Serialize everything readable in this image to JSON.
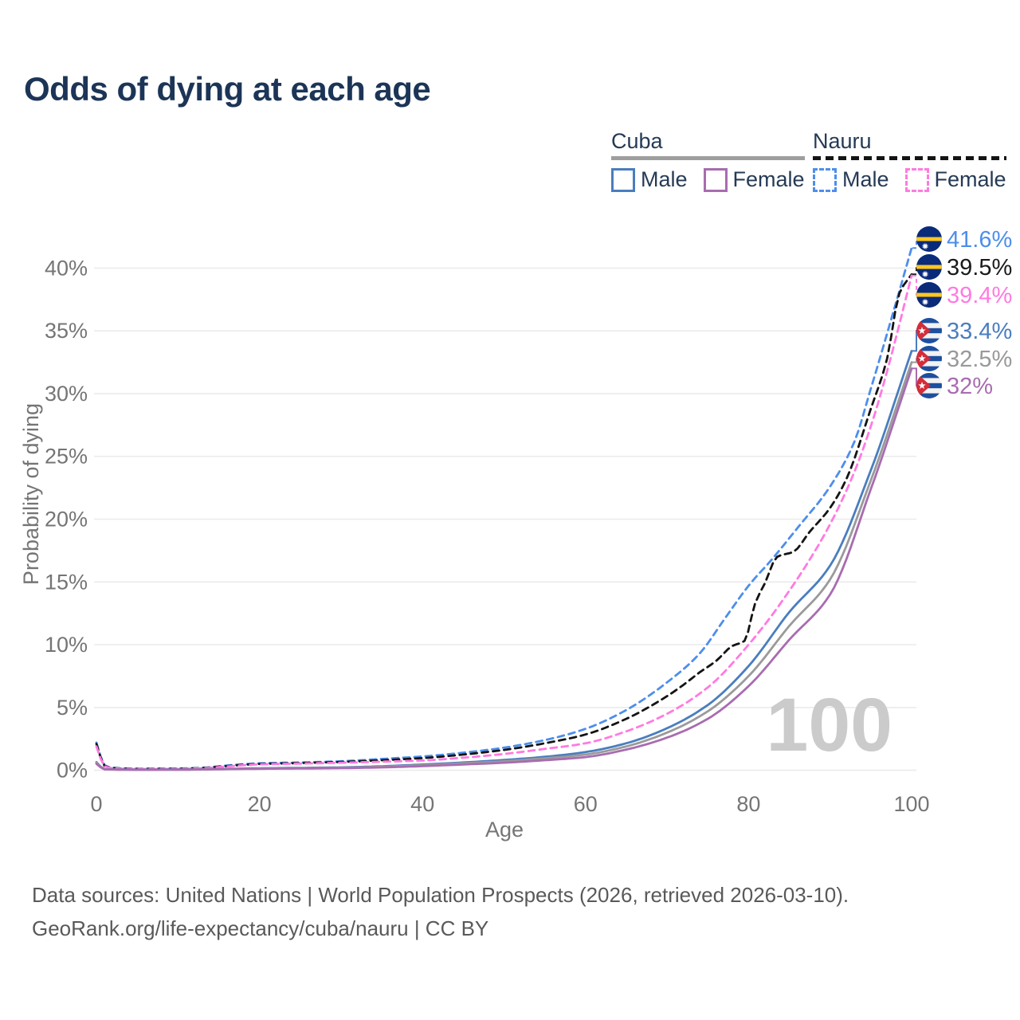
{
  "title": "Odds of dying at each age",
  "legend": {
    "groups": [
      {
        "label": "Cuba",
        "line_style": "solid",
        "underline_color": "#9e9e9e",
        "items": [
          {
            "label": "Male",
            "color": "#4a7dbf"
          },
          {
            "label": "Female",
            "color": "#a86cb0"
          }
        ]
      },
      {
        "label": "Nauru",
        "line_style": "dashed",
        "underline_color": "#141414",
        "items": [
          {
            "label": "Male",
            "color": "#4d8eeb"
          },
          {
            "label": "Female",
            "color": "#ff7ae1"
          }
        ]
      }
    ]
  },
  "chart_data": {
    "type": "line",
    "title": "Odds of dying at each age",
    "xlabel": "Age",
    "ylabel": "Probability of dying",
    "xlim": [
      0,
      100
    ],
    "ylim": [
      0,
      43
    ],
    "x_ticks": [
      0,
      20,
      40,
      60,
      80,
      100
    ],
    "y_ticks": [
      0,
      5,
      10,
      15,
      20,
      25,
      30,
      35,
      40
    ],
    "y_tick_suffix": "%",
    "grid": "horizontal",
    "watermark": "100",
    "legend_position": "top-right",
    "series": [
      {
        "key": "nauru-male",
        "name": "Nauru male",
        "country": "Nauru",
        "sex": "Male",
        "color": "#4d8eeb",
        "label_color": "#4d8eeb",
        "dashed": true,
        "flag": "nauru",
        "end_label": "41.6%",
        "end_value": 41.6,
        "points": [
          [
            0,
            2.2
          ],
          [
            1,
            0.4
          ],
          [
            2,
            0.2
          ],
          [
            5,
            0.13
          ],
          [
            10,
            0.14
          ],
          [
            13,
            0.2
          ],
          [
            16,
            0.38
          ],
          [
            20,
            0.55
          ],
          [
            25,
            0.62
          ],
          [
            30,
            0.72
          ],
          [
            35,
            0.9
          ],
          [
            40,
            1.1
          ],
          [
            45,
            1.4
          ],
          [
            50,
            1.8
          ],
          [
            55,
            2.4
          ],
          [
            60,
            3.3
          ],
          [
            65,
            4.8
          ],
          [
            70,
            7.0
          ],
          [
            74,
            9.3
          ],
          [
            77,
            12.0
          ],
          [
            80,
            14.7
          ],
          [
            83,
            16.9
          ],
          [
            86,
            19.3
          ],
          [
            90,
            22.6
          ],
          [
            93,
            26.2
          ],
          [
            95,
            30.4
          ],
          [
            97,
            34.8
          ],
          [
            100,
            41.6
          ]
        ]
      },
      {
        "key": "nauru-both",
        "name": "Nauru both sexes",
        "country": "Nauru",
        "sex": "Both",
        "color": "#141414",
        "label_color": "#1a1a1a",
        "dashed": true,
        "flag": "nauru",
        "end_label": "39.5%",
        "end_value": 39.5,
        "points": [
          [
            0,
            2.1
          ],
          [
            1,
            0.35
          ],
          [
            2,
            0.18
          ],
          [
            5,
            0.11
          ],
          [
            10,
            0.12
          ],
          [
            13,
            0.18
          ],
          [
            16,
            0.33
          ],
          [
            20,
            0.5
          ],
          [
            25,
            0.57
          ],
          [
            30,
            0.66
          ],
          [
            35,
            0.8
          ],
          [
            40,
            0.97
          ],
          [
            45,
            1.25
          ],
          [
            50,
            1.62
          ],
          [
            55,
            2.15
          ],
          [
            60,
            2.85
          ],
          [
            65,
            4.1
          ],
          [
            70,
            5.9
          ],
          [
            72,
            6.8
          ],
          [
            74,
            7.8
          ],
          [
            76,
            8.7
          ],
          [
            78,
            9.9
          ],
          [
            79.5,
            10.3
          ],
          [
            80.8,
            13.3
          ],
          [
            82,
            14.9
          ],
          [
            83.5,
            17.0
          ],
          [
            85.5,
            17.4
          ],
          [
            87.5,
            19.0
          ],
          [
            90,
            20.9
          ],
          [
            92,
            23.2
          ],
          [
            95,
            28.8
          ],
          [
            97,
            32.8
          ],
          [
            98.5,
            38.0
          ],
          [
            100,
            39.5
          ]
        ]
      },
      {
        "key": "nauru-female",
        "name": "Nauru female",
        "country": "Nauru",
        "sex": "Female",
        "color": "#ff7ae1",
        "label_color": "#ff7ae1",
        "dashed": true,
        "flag": "nauru",
        "end_label": "39.4%",
        "end_value": 39.4,
        "points": [
          [
            0,
            1.9
          ],
          [
            1,
            0.32
          ],
          [
            2,
            0.16
          ],
          [
            5,
            0.1
          ],
          [
            10,
            0.11
          ],
          [
            13,
            0.16
          ],
          [
            16,
            0.3
          ],
          [
            20,
            0.47
          ],
          [
            25,
            0.53
          ],
          [
            30,
            0.6
          ],
          [
            35,
            0.68
          ],
          [
            40,
            0.78
          ],
          [
            45,
            1.0
          ],
          [
            50,
            1.3
          ],
          [
            55,
            1.7
          ],
          [
            60,
            2.15
          ],
          [
            65,
            3.1
          ],
          [
            70,
            4.5
          ],
          [
            75,
            6.6
          ],
          [
            80,
            10.0
          ],
          [
            85,
            14.3
          ],
          [
            90,
            19.6
          ],
          [
            93,
            23.8
          ],
          [
            95,
            27.4
          ],
          [
            97,
            31.8
          ],
          [
            100,
            39.4
          ]
        ]
      },
      {
        "key": "cuba-male",
        "name": "Cuba male",
        "country": "Cuba",
        "sex": "Male",
        "color": "#4a7dbf",
        "label_color": "#4a7dbf",
        "dashed": false,
        "flag": "cuba",
        "end_label": "33.4%",
        "end_value": 33.4,
        "points": [
          [
            0,
            0.65
          ],
          [
            1,
            0.09
          ],
          [
            5,
            0.05
          ],
          [
            10,
            0.06
          ],
          [
            15,
            0.1
          ],
          [
            20,
            0.16
          ],
          [
            25,
            0.19
          ],
          [
            30,
            0.23
          ],
          [
            35,
            0.32
          ],
          [
            40,
            0.46
          ],
          [
            45,
            0.62
          ],
          [
            50,
            0.82
          ],
          [
            55,
            1.07
          ],
          [
            60,
            1.45
          ],
          [
            65,
            2.15
          ],
          [
            70,
            3.35
          ],
          [
            75,
            5.2
          ],
          [
            80,
            8.3
          ],
          [
            85,
            12.6
          ],
          [
            90,
            16.3
          ],
          [
            95,
            23.9
          ],
          [
            100,
            33.4
          ]
        ]
      },
      {
        "key": "cuba-both",
        "name": "Cuba both sexes",
        "country": "Cuba",
        "sex": "Both",
        "color": "#9a9a9a",
        "label_color": "#999999",
        "dashed": false,
        "flag": "cuba",
        "end_label": "32.5%",
        "end_value": 32.5,
        "points": [
          [
            0,
            0.6
          ],
          [
            1,
            0.08
          ],
          [
            5,
            0.045
          ],
          [
            10,
            0.05
          ],
          [
            15,
            0.09
          ],
          [
            20,
            0.14
          ],
          [
            25,
            0.17
          ],
          [
            30,
            0.2
          ],
          [
            35,
            0.28
          ],
          [
            40,
            0.4
          ],
          [
            45,
            0.55
          ],
          [
            50,
            0.72
          ],
          [
            55,
            0.95
          ],
          [
            60,
            1.25
          ],
          [
            65,
            1.9
          ],
          [
            70,
            3.0
          ],
          [
            75,
            4.7
          ],
          [
            80,
            7.5
          ],
          [
            85,
            11.5
          ],
          [
            90,
            15.2
          ],
          [
            95,
            23.1
          ],
          [
            100,
            32.5
          ]
        ]
      },
      {
        "key": "cuba-female",
        "name": "Cuba female",
        "country": "Cuba",
        "sex": "Female",
        "color": "#a86cb0",
        "label_color": "#a86cb0",
        "dashed": false,
        "flag": "cuba",
        "end_label": "32%",
        "end_value": 32,
        "points": [
          [
            0,
            0.52
          ],
          [
            1,
            0.07
          ],
          [
            5,
            0.04
          ],
          [
            10,
            0.045
          ],
          [
            15,
            0.08
          ],
          [
            20,
            0.12
          ],
          [
            25,
            0.14
          ],
          [
            30,
            0.17
          ],
          [
            35,
            0.23
          ],
          [
            40,
            0.33
          ],
          [
            45,
            0.46
          ],
          [
            50,
            0.6
          ],
          [
            55,
            0.8
          ],
          [
            60,
            1.05
          ],
          [
            65,
            1.65
          ],
          [
            70,
            2.6
          ],
          [
            75,
            4.1
          ],
          [
            80,
            6.7
          ],
          [
            85,
            10.4
          ],
          [
            90,
            14.0
          ],
          [
            95,
            22.4
          ],
          [
            100,
            32.0
          ]
        ]
      }
    ],
    "flag_colors": {
      "nauru": {
        "field": "#0a2a7a",
        "stripe": "#ffc61e",
        "star": "#ffffff"
      },
      "cuba": {
        "blue": "#1d4f9f",
        "white": "#f2f2f2",
        "triangle": "#d32c3a",
        "star": "#ffffff"
      }
    }
  },
  "footer": {
    "line1": "Data sources: United Nations | World Population Prospects (2026, retrieved 2026-03-10).",
    "line2": "GeoRank.org/life-expectancy/cuba/nauru | CC BY"
  }
}
